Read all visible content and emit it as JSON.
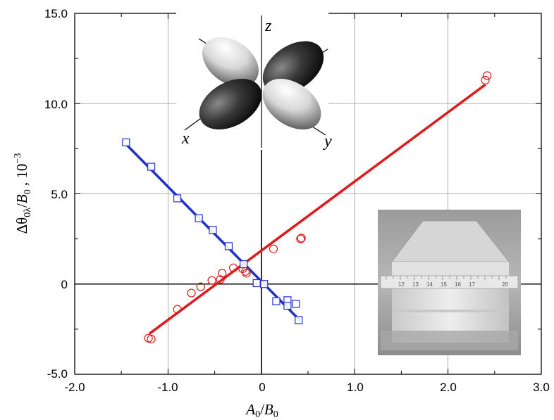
{
  "chart_data": {
    "type": "scatter",
    "title": "",
    "xlabel": "A0/B0",
    "ylabel": "Δθ0λ/B0 , 10^-3",
    "xlim": [
      -2.0,
      3.0
    ],
    "ylim": [
      -5.0,
      15.0
    ],
    "x_ticks": [
      "-2.0",
      "-1.0",
      "0",
      "1.0",
      "2.0",
      "3.0"
    ],
    "x_tick_values": [
      -2.0,
      -1.0,
      0,
      1.0,
      2.0,
      3.0
    ],
    "y_ticks": [
      "-5.0",
      "0",
      "5.0",
      "10.0",
      "15.0"
    ],
    "y_tick_values": [
      -5.0,
      0,
      5.0,
      10.0,
      15.0
    ],
    "grid": true,
    "series": [
      {
        "marker": "circle",
        "color": "#e0191b",
        "points": [
          [
            -1.21,
            -3.0
          ],
          [
            -1.18,
            -3.05
          ],
          [
            -0.9,
            -1.4
          ],
          [
            -0.75,
            -0.5
          ],
          [
            -0.65,
            -0.15
          ],
          [
            -0.53,
            0.2
          ],
          [
            -0.44,
            0.25
          ],
          [
            -0.42,
            0.6
          ],
          [
            -0.3,
            0.9
          ],
          [
            -0.2,
            0.85
          ],
          [
            -0.17,
            0.7
          ],
          [
            -0.16,
            0.6
          ],
          [
            0.13,
            1.95
          ],
          [
            0.42,
            2.5
          ],
          [
            0.43,
            2.55
          ],
          [
            2.4,
            11.3
          ],
          [
            2.42,
            11.55
          ]
        ],
        "fit": {
          "x": [
            -1.2,
            2.4
          ],
          "y": [
            -2.75,
            11.05
          ]
        }
      },
      {
        "marker": "square",
        "color": "#1f2fcc",
        "points": [
          [
            -1.45,
            7.85
          ],
          [
            -1.18,
            6.5
          ],
          [
            -0.9,
            4.75
          ],
          [
            -0.67,
            3.65
          ],
          [
            -0.52,
            3.0
          ],
          [
            -0.35,
            2.1
          ],
          [
            -0.19,
            1.1
          ],
          [
            -0.05,
            0.05
          ],
          [
            0.03,
            0.0
          ],
          [
            0.16,
            -0.95
          ],
          [
            0.28,
            -0.9
          ],
          [
            0.28,
            -1.2
          ],
          [
            0.37,
            -1.1
          ],
          [
            0.4,
            -2.0
          ]
        ],
        "fit": {
          "x": [
            -1.45,
            0.42
          ],
          "y": [
            7.75,
            -2.05
          ]
        }
      }
    ],
    "annotations": {
      "orbital_axes": [
        "z",
        "x",
        "y"
      ],
      "ruler_marks": [
        "12",
        "13",
        "14",
        "15",
        "16",
        "17",
        "20"
      ]
    }
  },
  "colors": {
    "red_series": "#e0191b",
    "blue_series": "#1f2fcc",
    "grid": "#9a9a9a",
    "axis": "#000000"
  }
}
